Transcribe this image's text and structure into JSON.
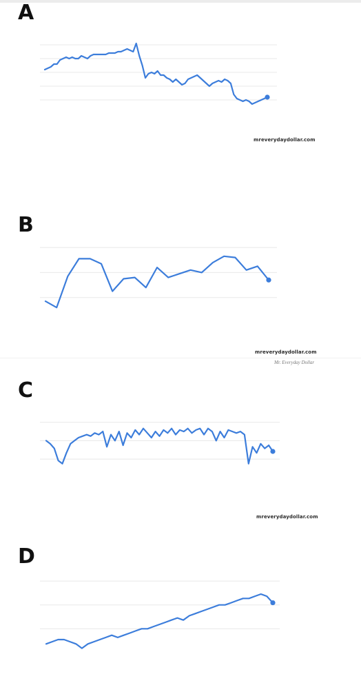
{
  "colors": {
    "line": "#3c7ddb",
    "grid": "#e8e8e8",
    "label": "#111111"
  },
  "signature": "Mr. Everyday Dollar",
  "chart_data": [
    {
      "type": "line",
      "panel_label": "A",
      "watermark": "mreverydaydollar.com",
      "series": [
        {
          "values": [
            62,
            63,
            64,
            66,
            66,
            69,
            70,
            71,
            70,
            71,
            70,
            70,
            72,
            71,
            70,
            72,
            73,
            73,
            73,
            73,
            73,
            74,
            74,
            74,
            75,
            75,
            76,
            77,
            76,
            75,
            81,
            72,
            65,
            56,
            59,
            60,
            59,
            61,
            58,
            58,
            56,
            55,
            53,
            55,
            53,
            51,
            52,
            55,
            56,
            57,
            58,
            56,
            54,
            52,
            50,
            52,
            53,
            54,
            53,
            55,
            54,
            52,
            44,
            41,
            40,
            39,
            40,
            39,
            37,
            38,
            39,
            40,
            41,
            42
          ]
        }
      ],
      "ylim": [
        30,
        90
      ],
      "grid_y": [
        40,
        50,
        60,
        70,
        80
      ]
    },
    {
      "type": "line",
      "panel_label": "B",
      "watermark": "mreverydaydollar.com",
      "series": [
        {
          "values": [
            42,
            37,
            62,
            76,
            76,
            72,
            50,
            60,
            61,
            53,
            69,
            61,
            64,
            67,
            65,
            73,
            78,
            77,
            67,
            70,
            59
          ]
        }
      ],
      "ylim": [
        25,
        90
      ],
      "grid_y": [
        45,
        65,
        85
      ]
    },
    {
      "type": "line",
      "panel_label": "C",
      "watermark": "mreverydaydollar.com",
      "series": [
        {
          "values": [
            60,
            58,
            55,
            47,
            45,
            52,
            58,
            60,
            62,
            63,
            64,
            63,
            65,
            64,
            66,
            56,
            64,
            60,
            66,
            57,
            65,
            62,
            67,
            64,
            68,
            65,
            62,
            66,
            63,
            67,
            65,
            68,
            64,
            67,
            66,
            68,
            65,
            67,
            68,
            64,
            68,
            66,
            60,
            66,
            62,
            67,
            66,
            65,
            66,
            64,
            45,
            56,
            52,
            58,
            55,
            57,
            53
          ]
        }
      ],
      "ylim": [
        35,
        80
      ],
      "grid_y": [
        48,
        60,
        72
      ]
    },
    {
      "type": "line",
      "panel_label": "D",
      "watermark": "",
      "series": [
        {
          "values": [
            20,
            21,
            22,
            22,
            21,
            20,
            18,
            20,
            21,
            22,
            23,
            24,
            23,
            24,
            25,
            26,
            27,
            27,
            28,
            29,
            30,
            31,
            32,
            31,
            33,
            34,
            35,
            36,
            37,
            38,
            38,
            39,
            40,
            41,
            41,
            42,
            43,
            42,
            39
          ]
        }
      ],
      "ylim": [
        15,
        50
      ],
      "grid_y": [
        27,
        38,
        49
      ]
    }
  ]
}
